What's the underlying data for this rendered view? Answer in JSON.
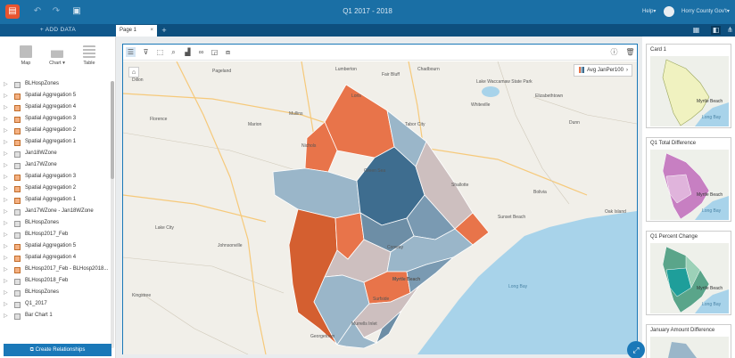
{
  "app": {
    "title": "Q1 2017 - 2018",
    "help_label": "Help▾",
    "user_label": "Horry County Gov't▾"
  },
  "tabs": {
    "add_data_label": "+ ADD DATA",
    "page_tab_label": "Page 1",
    "page_tab_close": "×",
    "add_page_label": "+"
  },
  "visualization_types": [
    {
      "label": "Map"
    },
    {
      "label": "Chart ▾"
    },
    {
      "label": "Table"
    }
  ],
  "layers": [
    {
      "name": "BLHospZones",
      "type": "dataset"
    },
    {
      "name": "Spatial Aggregation 5",
      "type": "aggregation"
    },
    {
      "name": "Spatial Aggregation 4",
      "type": "aggregation"
    },
    {
      "name": "Spatial Aggregation 3",
      "type": "aggregation"
    },
    {
      "name": "Spatial Aggregation 2",
      "type": "aggregation"
    },
    {
      "name": "Spatial Aggregation 1",
      "type": "aggregation"
    },
    {
      "name": "Jan18WZone",
      "type": "dataset"
    },
    {
      "name": "Jan17WZone",
      "type": "dataset"
    },
    {
      "name": "Spatial Aggregation 3",
      "type": "aggregation"
    },
    {
      "name": "Spatial Aggregation 2",
      "type": "aggregation"
    },
    {
      "name": "Spatial Aggregation 1",
      "type": "aggregation"
    },
    {
      "name": "Jan17WZone - Jan18WZone",
      "type": "dataset"
    },
    {
      "name": "BLHospZones",
      "type": "dataset"
    },
    {
      "name": "BLHosp2017_Feb",
      "type": "dataset"
    },
    {
      "name": "Spatial Aggregation 5",
      "type": "aggregation"
    },
    {
      "name": "Spatial Aggregation 4",
      "type": "aggregation"
    },
    {
      "name": "BLHosp2017_Feb - BLHosp2018...",
      "type": "aggregation"
    },
    {
      "name": "BLHosp2018_Feb",
      "type": "dataset"
    },
    {
      "name": "BLHospZones",
      "type": "dataset"
    },
    {
      "name": "Q1_2017",
      "type": "dataset"
    },
    {
      "name": "Bar Chart 1",
      "type": "dataset"
    }
  ],
  "create_relationships_label": "Create Relationships",
  "main_card": {
    "legend_label": "Avg JanPer100",
    "legend_arrow": "›",
    "map_labels": {
      "loris": "Loris",
      "tabor_city": "Tabor City",
      "conway": "Conway",
      "myrtle_beach": "Myrtle Beach",
      "long_bay": "Long Bay",
      "sunset_beach": "Sunset Beach",
      "whiteville": "Whiteville",
      "lake_city": "Lake City",
      "johnsonville": "Johnsonville",
      "kingstree": "Kingstree",
      "marion": "Marion",
      "mullins": "Mullins",
      "florence": "Florence",
      "dillon": "Dillon",
      "elizabethtown": "Elizabethtown",
      "lake_waccamaw": "Lake Waccamaw State Park",
      "bolivia": "Bolivia",
      "oak_island": "Oak Island",
      "georgetown": "Georgetown",
      "murrells_inlet": "Murrells Inlet",
      "surfside": "Surfside",
      "chadbourn": "Chadbourn",
      "fair_bluff": "Fair Bluff",
      "lumberton": "Lumberton",
      "pageland": "Pageland",
      "dunn": "Dunn",
      "nichols": "Nichols",
      "green_sea": "Green Sea",
      "shallotte": "Shallotte"
    }
  },
  "side_cards": [
    {
      "title": "Card 1",
      "label_city": "Myrtle Beach",
      "label_water": "Long Bay"
    },
    {
      "title": "Q1 Total Difference",
      "label_city": "Myrtle Beach",
      "label_water": "Long Bay"
    },
    {
      "title": "Q1 Percent Change",
      "label_city": "Myrtle Beach",
      "label_water": "Long Bay"
    },
    {
      "title": "January Amount Difference"
    }
  ],
  "colors": {
    "top_bar": "#1a6fa5",
    "tab_bar": "#0d4f7e",
    "accent": "#1a78b8",
    "orange_high": "#e8744a",
    "orange_dark": "#d45f30",
    "blue_light": "#9ab6c9",
    "blue_dark": "#3e6d8f",
    "neutral": "#cdbfbf",
    "ocean": "#a8d3ea"
  },
  "icons": {
    "logo": "insights-logo-icon",
    "undo": "undo-icon",
    "redo": "redo-icon",
    "save": "save-icon",
    "home": "home-icon"
  }
}
